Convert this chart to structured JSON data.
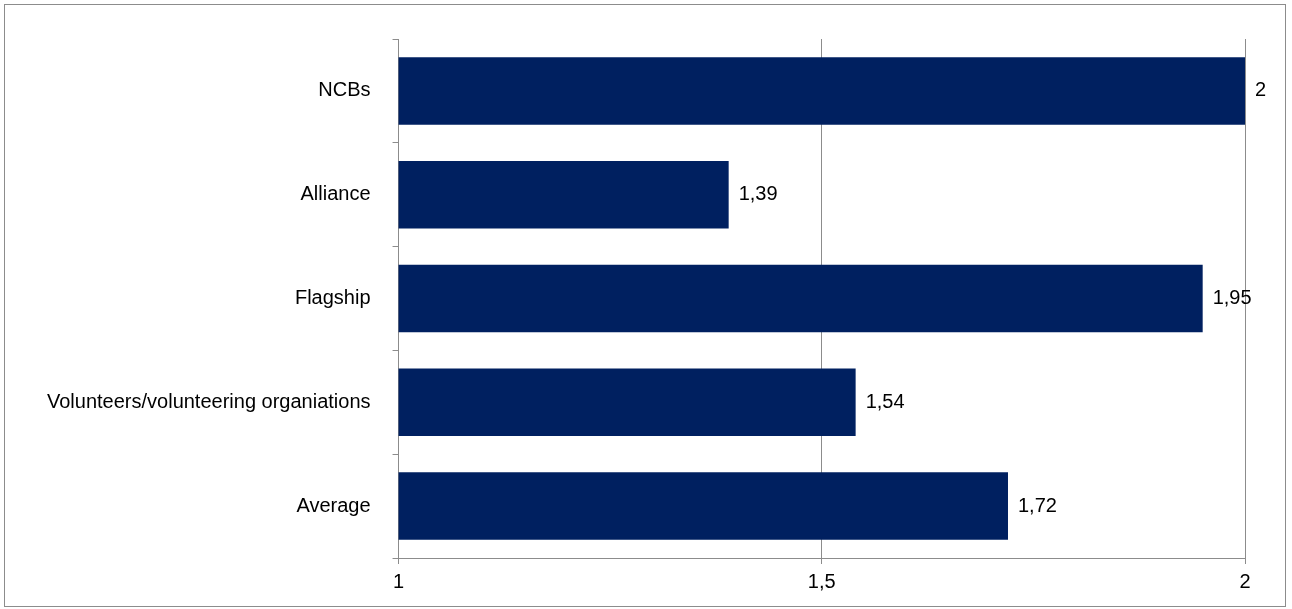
{
  "chart_data": {
    "type": "bar",
    "orientation": "horizontal",
    "categories": [
      "NCBs",
      "Alliance",
      "Flagship",
      "Volunteers/volunteering organiations",
      "Average"
    ],
    "values": [
      2,
      1.39,
      1.95,
      1.54,
      1.72
    ],
    "value_labels": [
      "2",
      "1,39",
      "1,95",
      "1,54",
      "1,72"
    ],
    "color": "#002060",
    "xlim": [
      1,
      2
    ],
    "xticks": [
      1,
      {
        "value": 1.5,
        "label": "1,5"
      },
      2
    ],
    "grid": "x",
    "legend": false
  }
}
